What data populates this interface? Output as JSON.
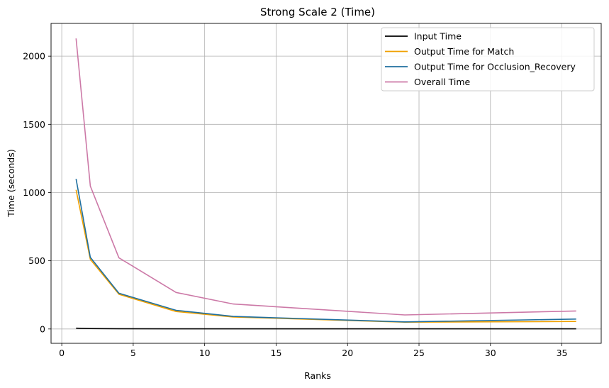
{
  "chart_data": {
    "type": "line",
    "title": "Strong Scale 2 (Time)",
    "xlabel": "Ranks",
    "ylabel": "Time (seconds)",
    "xlim": [
      -0.75,
      37.75
    ],
    "ylim": [
      -105,
      2240
    ],
    "xticks": [
      0,
      5,
      10,
      15,
      20,
      25,
      30,
      35
    ],
    "yticks": [
      0,
      500,
      1000,
      1500,
      2000
    ],
    "grid": true,
    "legend_position": "top-right",
    "x": [
      1,
      2,
      4,
      8,
      12,
      24,
      36
    ],
    "series": [
      {
        "name": "Input Time",
        "color": "#000000",
        "values": [
          6,
          3,
          2,
          1,
          1,
          1,
          1
        ]
      },
      {
        "name": "Output Time for Match",
        "color": "#f0a000",
        "values": [
          1020,
          510,
          255,
          128,
          88,
          50,
          55
        ]
      },
      {
        "name": "Output Time for Occlusion_Recovery",
        "color": "#1f6f9f",
        "values": [
          1100,
          525,
          262,
          137,
          92,
          52,
          73
        ]
      },
      {
        "name": "Overall Time",
        "color": "#cc79a7",
        "values": [
          2130,
          1048,
          522,
          268,
          183,
          103,
          132
        ]
      }
    ]
  }
}
